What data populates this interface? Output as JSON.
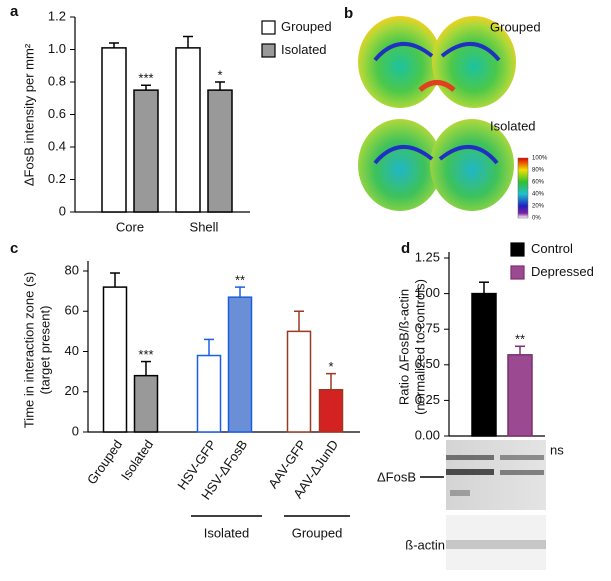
{
  "chart_data": [
    {
      "type": "bar",
      "panel": "a",
      "ylabel": "ΔFosB intensity per mm²",
      "categories": [
        "Core",
        "Shell"
      ],
      "series": [
        {
          "name": "Grouped",
          "color": "#ffffff",
          "values": [
            1.01,
            1.01
          ],
          "errors": [
            0.03,
            0.07
          ],
          "annotations": [
            null,
            null
          ]
        },
        {
          "name": "Isolated",
          "color": "#999999",
          "values": [
            0.75,
            0.75
          ],
          "errors": [
            0.03,
            0.05
          ],
          "annotations": [
            "***",
            "*"
          ]
        }
      ],
      "ylim": [
        0,
        1.2
      ],
      "yticks": [
        0,
        0.2,
        0.4,
        0.6,
        0.8,
        {
          "value": 1,
          "label": "1.0"
        },
        1.2
      ]
    },
    {
      "type": "bar",
      "panel": "c",
      "ylabel": "Time in interaction zone (s)",
      "ylabel_sub": "(target present)",
      "categories": [
        "Grouped",
        "Isolated",
        "HSV-GFP",
        "HSV-ΔFosB",
        "AAV-GFP",
        "AAV-ΔJunD"
      ],
      "values": [
        72,
        28,
        38,
        67,
        50,
        21
      ],
      "errors": [
        7,
        7,
        8,
        5,
        10,
        8
      ],
      "colors": [
        "#ffffff",
        "#999999",
        "#ffffff",
        "#6b8fd6",
        "#ffffff",
        "#d42222"
      ],
      "edge_colors": [
        "#000000",
        "#000000",
        "#1a5fe0",
        "#1a5fe0",
        "#9b3a22",
        "#9b3a22"
      ],
      "annotations": [
        null,
        "***",
        null,
        "**",
        null,
        "*"
      ],
      "group_labels": [
        "Isolated",
        "Grouped"
      ],
      "ylim": [
        0,
        80
      ],
      "yticks": [
        0,
        20,
        40,
        60,
        80
      ]
    },
    {
      "type": "bar",
      "panel": "d",
      "ylabel": "Ratio ΔFosB/ß-actin",
      "ylabel_sub": "(normalized to controls)",
      "categories": [
        null
      ],
      "series": [
        {
          "name": "Control",
          "color": "#000000",
          "edge_color": "#000000",
          "values": [
            1.0
          ],
          "errors": [
            0.08
          ],
          "annotations": [
            null
          ]
        },
        {
          "name": "Depressed",
          "color": "#9b4a91",
          "edge_color": "#7b2f72",
          "values": [
            0.57
          ],
          "errors": [
            0.06
          ],
          "annotations": [
            "**"
          ]
        }
      ],
      "ylim": [
        0,
        1.25
      ],
      "yticks": [
        {
          "value": 0,
          "label": "0.00"
        },
        {
          "value": 0.25,
          "label": "0.25"
        },
        {
          "value": 0.5,
          "label": "0.50"
        },
        {
          "value": 0.75,
          "label": "0.75"
        },
        {
          "value": 1,
          "label": "1.00"
        },
        {
          "value": 1.25,
          "label": "1.25"
        }
      ],
      "blot_labels": [
        "ns",
        "ΔFosB",
        "ß-actin"
      ]
    }
  ],
  "image_panel": {
    "panel": "b",
    "captions": [
      "Grouped",
      "Isolated"
    ],
    "colorbar_labels": [
      "100%",
      "80%",
      "60%",
      "40%",
      "20%",
      "0%"
    ]
  }
}
